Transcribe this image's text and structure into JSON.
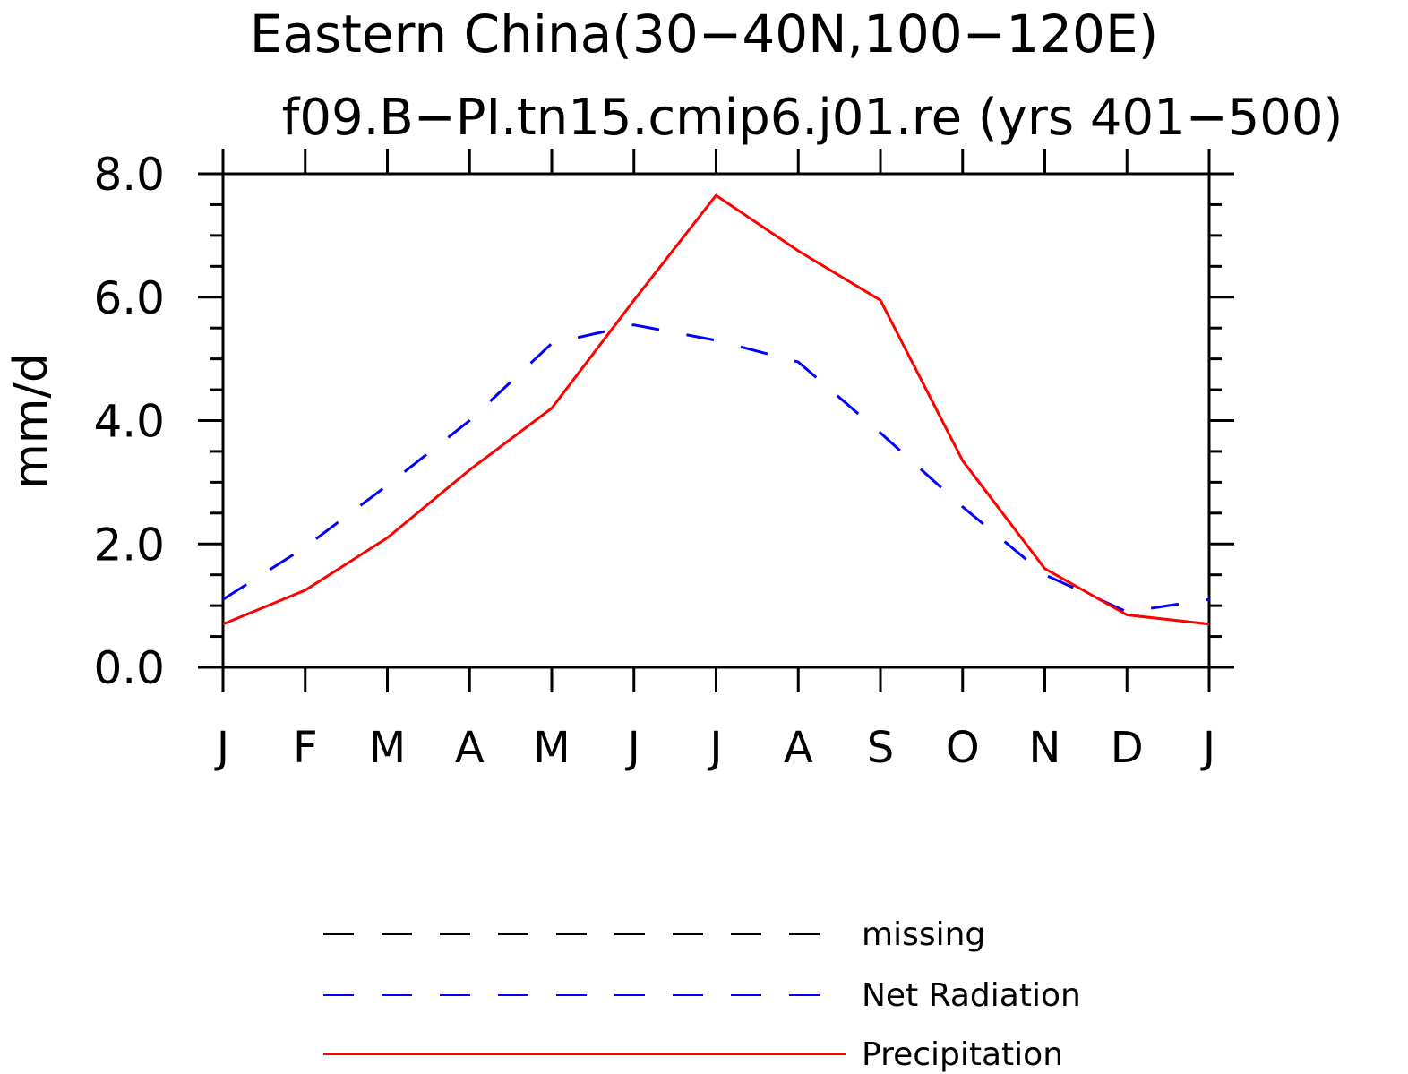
{
  "chart_data": {
    "type": "line",
    "title": "Eastern China(30−40N,100−120E)",
    "subtitle": "f09.B−PI.tn15.cmip6.j01.re (yrs 401−500)",
    "xlabel": "",
    "ylabel": "mm/d",
    "categories": [
      "J",
      "F",
      "M",
      "A",
      "M",
      "J",
      "J",
      "A",
      "S",
      "O",
      "N",
      "D",
      "J"
    ],
    "ylim": [
      0,
      8
    ],
    "yticks": [
      "0.0",
      "2.0",
      "4.0",
      "6.0",
      "8.0"
    ],
    "series": [
      {
        "name": "Net Radiation",
        "color": "#0000ff",
        "dash": "dashed",
        "values": [
          1.1,
          1.95,
          2.95,
          4.0,
          5.25,
          5.55,
          5.3,
          4.95,
          3.8,
          2.6,
          1.5,
          0.9,
          1.1
        ]
      },
      {
        "name": "Precipitation",
        "color": "#ff0000",
        "dash": "solid",
        "values": [
          0.7,
          1.25,
          2.1,
          3.2,
          4.2,
          5.95,
          7.65,
          6.75,
          5.95,
          3.35,
          1.6,
          0.85,
          0.7
        ]
      }
    ],
    "legend": {
      "placement": "bottom",
      "entries": [
        {
          "label": "missing",
          "color": "#000000",
          "dash": "dashed"
        },
        {
          "label": "Net Radiation",
          "color": "#0000ff",
          "dash": "dashed"
        },
        {
          "label": "Precipitation",
          "color": "#ff0000",
          "dash": "solid"
        }
      ]
    }
  }
}
